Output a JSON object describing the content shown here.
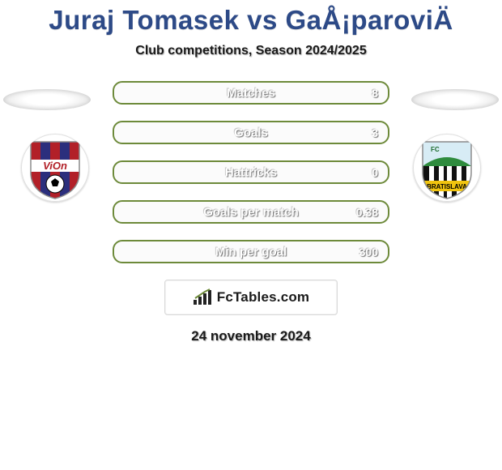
{
  "title": "Juraj Tomasek vs GaÅ¡paroviÄ",
  "subtitle": "Club competitions, Season 2024/2025",
  "date": "24 november 2024",
  "logo_text": "FcTables.com",
  "colors": {
    "title": "#2d4a87",
    "pill_bg": "#fbfbfb",
    "pill_border": "#6d8a3a",
    "text_white": "#ffffff"
  },
  "stats": [
    {
      "label": "Matches",
      "value": "8"
    },
    {
      "label": "Goals",
      "value": "3"
    },
    {
      "label": "Hattricks",
      "value": "0"
    },
    {
      "label": "Goals per match",
      "value": "0.38"
    },
    {
      "label": "Min per goal",
      "value": "300"
    }
  ],
  "badges": {
    "left": {
      "name": "vion-badge",
      "stripes": [
        "#b22028",
        "#2b2f7d",
        "#b22028",
        "#2b2f7d",
        "#b22028"
      ],
      "banner_bg": "#ffffff",
      "banner_text": "ViOn",
      "banner_text_color": "#b22028"
    },
    "right": {
      "name": "bratislava-badge",
      "body": "#111111",
      "body2": "#ffffff",
      "accent": "#2e8b3d",
      "ribbon": "#f1c40f",
      "ribbon_text": "BRATISLAVA",
      "ribbon_text_color": "#000000"
    }
  }
}
